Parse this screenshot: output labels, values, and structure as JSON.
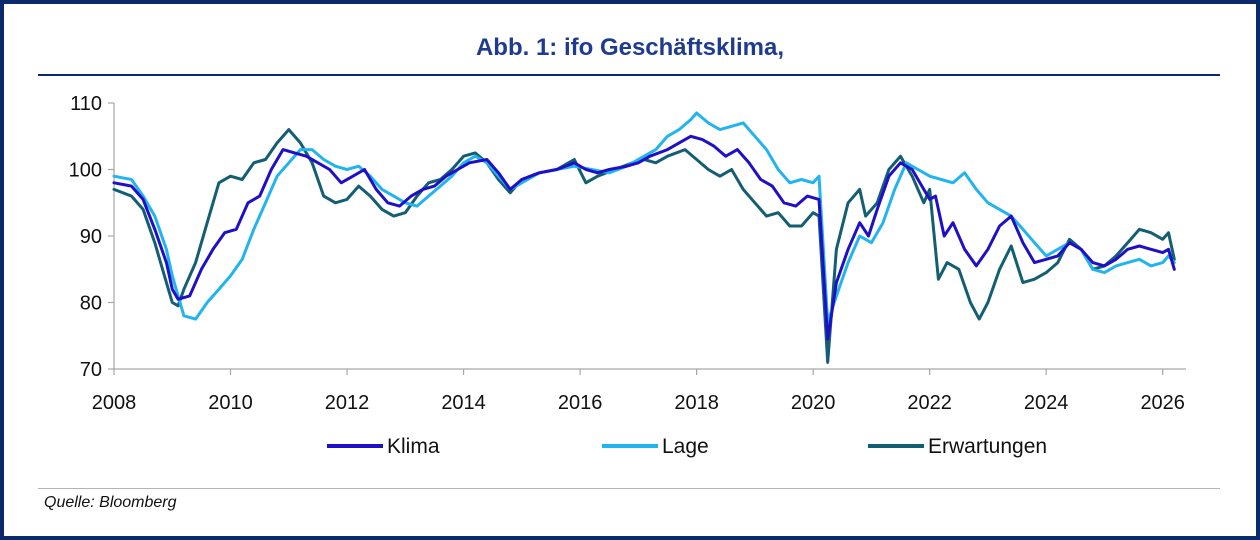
{
  "title": "Abb. 1: ifo Geschäftsklima,",
  "source": "Quelle: Bloomberg",
  "colors": {
    "border": "#0b2a6b",
    "title": "#1f3b8f",
    "klima": "#1f10c8",
    "lage": "#22b4ee",
    "erwartungen": "#135e73"
  },
  "chart_data": {
    "type": "line",
    "title": "Abb. 1: ifo Geschäftsklima,",
    "xlabel": "",
    "ylabel": "",
    "xlim": [
      2008,
      2026.4
    ],
    "ylim": [
      70,
      110
    ],
    "x_ticks": [
      "2008",
      "2010",
      "2012",
      "2014",
      "2016",
      "2018",
      "2020",
      "2022",
      "2024",
      "2026"
    ],
    "y_ticks": [
      "70",
      "80",
      "90",
      "100",
      "110"
    ],
    "grid": false,
    "legend": "bottom",
    "series": [
      {
        "name": "Klima",
        "color": "#1f10c8",
        "points": [
          [
            2008.0,
            98
          ],
          [
            2008.3,
            97.5
          ],
          [
            2008.5,
            95.5
          ],
          [
            2008.7,
            91
          ],
          [
            2008.9,
            86
          ],
          [
            2009.0,
            82
          ],
          [
            2009.1,
            80.5
          ],
          [
            2009.3,
            81
          ],
          [
            2009.5,
            85
          ],
          [
            2009.7,
            88
          ],
          [
            2009.9,
            90.5
          ],
          [
            2010.1,
            91
          ],
          [
            2010.3,
            95
          ],
          [
            2010.5,
            96
          ],
          [
            2010.7,
            100
          ],
          [
            2010.9,
            103
          ],
          [
            2011.1,
            102.5
          ],
          [
            2011.3,
            102
          ],
          [
            2011.5,
            101
          ],
          [
            2011.7,
            100
          ],
          [
            2011.9,
            98
          ],
          [
            2012.1,
            99
          ],
          [
            2012.3,
            100
          ],
          [
            2012.5,
            97
          ],
          [
            2012.7,
            95
          ],
          [
            2012.9,
            94.5
          ],
          [
            2013.1,
            96
          ],
          [
            2013.3,
            97
          ],
          [
            2013.5,
            97.5
          ],
          [
            2013.7,
            99
          ],
          [
            2013.9,
            100
          ],
          [
            2014.1,
            101
          ],
          [
            2014.4,
            101.5
          ],
          [
            2014.6,
            99.5
          ],
          [
            2014.8,
            97
          ],
          [
            2015.0,
            98.5
          ],
          [
            2015.3,
            99.5
          ],
          [
            2015.6,
            100
          ],
          [
            2015.9,
            101
          ],
          [
            2016.1,
            100
          ],
          [
            2016.3,
            99.5
          ],
          [
            2016.5,
            100
          ],
          [
            2016.8,
            100.5
          ],
          [
            2017.0,
            101
          ],
          [
            2017.2,
            102
          ],
          [
            2017.5,
            103
          ],
          [
            2017.7,
            104
          ],
          [
            2017.9,
            105
          ],
          [
            2018.1,
            104.5
          ],
          [
            2018.3,
            103.5
          ],
          [
            2018.5,
            102
          ],
          [
            2018.7,
            103
          ],
          [
            2018.9,
            101
          ],
          [
            2019.1,
            98.5
          ],
          [
            2019.3,
            97.5
          ],
          [
            2019.5,
            95
          ],
          [
            2019.7,
            94.5
          ],
          [
            2019.9,
            96
          ],
          [
            2020.1,
            95.5
          ],
          [
            2020.25,
            74.5
          ],
          [
            2020.4,
            83
          ],
          [
            2020.6,
            88
          ],
          [
            2020.8,
            92
          ],
          [
            2020.95,
            90
          ],
          [
            2021.1,
            94
          ],
          [
            2021.3,
            99
          ],
          [
            2021.5,
            101
          ],
          [
            2021.7,
            100
          ],
          [
            2021.9,
            97
          ],
          [
            2022.0,
            95.5
          ],
          [
            2022.1,
            96
          ],
          [
            2022.25,
            90
          ],
          [
            2022.4,
            92
          ],
          [
            2022.6,
            88
          ],
          [
            2022.8,
            85.5
          ],
          [
            2023.0,
            88
          ],
          [
            2023.2,
            91.5
          ],
          [
            2023.4,
            93
          ],
          [
            2023.6,
            89
          ],
          [
            2023.8,
            86
          ],
          [
            2024.0,
            86.5
          ],
          [
            2024.2,
            87
          ],
          [
            2024.4,
            89
          ],
          [
            2024.6,
            88
          ],
          [
            2024.8,
            86
          ],
          [
            2025.0,
            85.5
          ],
          [
            2025.2,
            86.5
          ],
          [
            2025.4,
            88
          ],
          [
            2025.6,
            88.5
          ],
          [
            2025.8,
            88
          ],
          [
            2026.0,
            87.5
          ],
          [
            2026.1,
            88
          ],
          [
            2026.2,
            85
          ]
        ]
      },
      {
        "name": "Lage",
        "color": "#22b4ee",
        "points": [
          [
            2008.0,
            99
          ],
          [
            2008.3,
            98.5
          ],
          [
            2008.5,
            96
          ],
          [
            2008.7,
            93
          ],
          [
            2008.9,
            88
          ],
          [
            2009.0,
            84
          ],
          [
            2009.2,
            78
          ],
          [
            2009.4,
            77.5
          ],
          [
            2009.6,
            80
          ],
          [
            2009.8,
            82
          ],
          [
            2010.0,
            84
          ],
          [
            2010.2,
            86.5
          ],
          [
            2010.4,
            91
          ],
          [
            2010.6,
            95
          ],
          [
            2010.8,
            99
          ],
          [
            2011.0,
            101
          ],
          [
            2011.2,
            103
          ],
          [
            2011.4,
            103
          ],
          [
            2011.6,
            101.5
          ],
          [
            2011.8,
            100.5
          ],
          [
            2012.0,
            100
          ],
          [
            2012.2,
            100.5
          ],
          [
            2012.4,
            99
          ],
          [
            2012.6,
            97
          ],
          [
            2012.8,
            96
          ],
          [
            2013.0,
            95
          ],
          [
            2013.2,
            94.5
          ],
          [
            2013.4,
            96
          ],
          [
            2013.6,
            97.5
          ],
          [
            2013.8,
            99
          ],
          [
            2014.0,
            101
          ],
          [
            2014.2,
            102
          ],
          [
            2014.4,
            101
          ],
          [
            2014.6,
            99
          ],
          [
            2014.8,
            97
          ],
          [
            2015.0,
            98
          ],
          [
            2015.3,
            99.5
          ],
          [
            2015.6,
            100
          ],
          [
            2015.9,
            100.5
          ],
          [
            2016.2,
            100
          ],
          [
            2016.5,
            99.5
          ],
          [
            2016.8,
            100.5
          ],
          [
            2017.0,
            101.5
          ],
          [
            2017.3,
            103
          ],
          [
            2017.5,
            105
          ],
          [
            2017.7,
            106
          ],
          [
            2017.9,
            107.5
          ],
          [
            2018.0,
            108.5
          ],
          [
            2018.2,
            107
          ],
          [
            2018.4,
            106
          ],
          [
            2018.6,
            106.5
          ],
          [
            2018.8,
            107
          ],
          [
            2019.0,
            105
          ],
          [
            2019.2,
            103
          ],
          [
            2019.4,
            100
          ],
          [
            2019.6,
            98
          ],
          [
            2019.8,
            98.5
          ],
          [
            2020.0,
            98
          ],
          [
            2020.1,
            99
          ],
          [
            2020.25,
            77
          ],
          [
            2020.4,
            81
          ],
          [
            2020.6,
            86
          ],
          [
            2020.8,
            90
          ],
          [
            2021.0,
            89
          ],
          [
            2021.2,
            92
          ],
          [
            2021.4,
            97
          ],
          [
            2021.6,
            101
          ],
          [
            2021.8,
            100
          ],
          [
            2022.0,
            99
          ],
          [
            2022.2,
            98.5
          ],
          [
            2022.4,
            98
          ],
          [
            2022.6,
            99.5
          ],
          [
            2022.8,
            97
          ],
          [
            2023.0,
            95
          ],
          [
            2023.2,
            94
          ],
          [
            2023.4,
            93
          ],
          [
            2023.6,
            91
          ],
          [
            2023.8,
            89
          ],
          [
            2024.0,
            87
          ],
          [
            2024.2,
            88
          ],
          [
            2024.4,
            89
          ],
          [
            2024.6,
            88
          ],
          [
            2024.8,
            85
          ],
          [
            2025.0,
            84.5
          ],
          [
            2025.2,
            85.5
          ],
          [
            2025.4,
            86
          ],
          [
            2025.6,
            86.5
          ],
          [
            2025.8,
            85.5
          ],
          [
            2026.0,
            86
          ],
          [
            2026.1,
            87
          ],
          [
            2026.2,
            86
          ]
        ]
      },
      {
        "name": "Erwartungen",
        "color": "#135e73",
        "points": [
          [
            2008.0,
            97
          ],
          [
            2008.3,
            96
          ],
          [
            2008.5,
            94
          ],
          [
            2008.7,
            89
          ],
          [
            2008.9,
            83
          ],
          [
            2009.0,
            80
          ],
          [
            2009.1,
            79.5
          ],
          [
            2009.2,
            82
          ],
          [
            2009.4,
            86
          ],
          [
            2009.6,
            92
          ],
          [
            2009.8,
            98
          ],
          [
            2010.0,
            99
          ],
          [
            2010.2,
            98.5
          ],
          [
            2010.4,
            101
          ],
          [
            2010.6,
            101.5
          ],
          [
            2010.8,
            104
          ],
          [
            2011.0,
            106
          ],
          [
            2011.2,
            104
          ],
          [
            2011.4,
            101
          ],
          [
            2011.6,
            96
          ],
          [
            2011.8,
            95
          ],
          [
            2012.0,
            95.5
          ],
          [
            2012.2,
            97.5
          ],
          [
            2012.4,
            96
          ],
          [
            2012.6,
            94
          ],
          [
            2012.8,
            93
          ],
          [
            2013.0,
            93.5
          ],
          [
            2013.2,
            96
          ],
          [
            2013.4,
            98
          ],
          [
            2013.6,
            98.5
          ],
          [
            2013.8,
            100
          ],
          [
            2014.0,
            102
          ],
          [
            2014.2,
            102.5
          ],
          [
            2014.4,
            101
          ],
          [
            2014.6,
            98.5
          ],
          [
            2014.8,
            96.5
          ],
          [
            2015.0,
            98.5
          ],
          [
            2015.3,
            99.5
          ],
          [
            2015.6,
            100
          ],
          [
            2015.9,
            101.5
          ],
          [
            2016.1,
            98
          ],
          [
            2016.3,
            99
          ],
          [
            2016.6,
            100
          ],
          [
            2016.9,
            101
          ],
          [
            2017.1,
            101.5
          ],
          [
            2017.3,
            101
          ],
          [
            2017.5,
            102
          ],
          [
            2017.8,
            103
          ],
          [
            2018.0,
            101.5
          ],
          [
            2018.2,
            100
          ],
          [
            2018.4,
            99
          ],
          [
            2018.6,
            100
          ],
          [
            2018.8,
            97
          ],
          [
            2019.0,
            95
          ],
          [
            2019.2,
            93
          ],
          [
            2019.4,
            93.5
          ],
          [
            2019.6,
            91.5
          ],
          [
            2019.8,
            91.5
          ],
          [
            2020.0,
            93.5
          ],
          [
            2020.1,
            93
          ],
          [
            2020.25,
            71
          ],
          [
            2020.4,
            88
          ],
          [
            2020.6,
            95
          ],
          [
            2020.8,
            97
          ],
          [
            2020.9,
            93
          ],
          [
            2021.1,
            95
          ],
          [
            2021.3,
            100
          ],
          [
            2021.5,
            102
          ],
          [
            2021.7,
            99
          ],
          [
            2021.9,
            95
          ],
          [
            2022.0,
            97
          ],
          [
            2022.15,
            83.5
          ],
          [
            2022.3,
            86
          ],
          [
            2022.5,
            85
          ],
          [
            2022.7,
            80
          ],
          [
            2022.85,
            77.5
          ],
          [
            2023.0,
            80
          ],
          [
            2023.2,
            85
          ],
          [
            2023.4,
            88.5
          ],
          [
            2023.6,
            83
          ],
          [
            2023.8,
            83.5
          ],
          [
            2024.0,
            84.5
          ],
          [
            2024.2,
            86
          ],
          [
            2024.4,
            89.5
          ],
          [
            2024.6,
            88
          ],
          [
            2024.8,
            85
          ],
          [
            2025.0,
            85.5
          ],
          [
            2025.2,
            87
          ],
          [
            2025.4,
            89
          ],
          [
            2025.6,
            91
          ],
          [
            2025.8,
            90.5
          ],
          [
            2026.0,
            89.5
          ],
          [
            2026.1,
            90.5
          ],
          [
            2026.2,
            86.5
          ]
        ]
      }
    ]
  }
}
